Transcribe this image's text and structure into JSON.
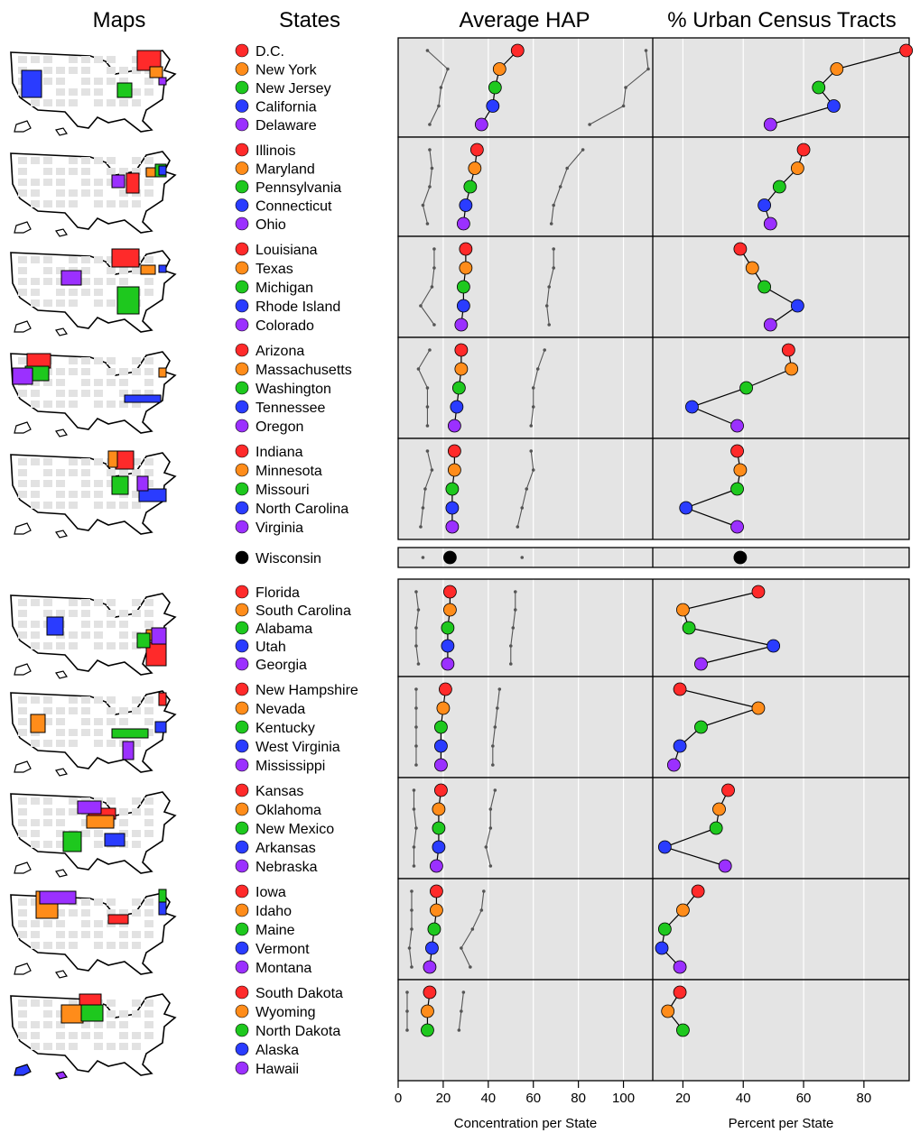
{
  "headers": {
    "maps": "Maps",
    "states": "States",
    "hap": "Average HAP",
    "urban": "% Urban Census Tracts"
  },
  "axis": {
    "hap_label": "Concentration per State",
    "urban_label": "Percent per State",
    "hap_ticks": [
      "0",
      "20",
      "40",
      "60",
      "80",
      "100"
    ],
    "urban_ticks": [
      "20",
      "40",
      "60",
      "80"
    ]
  },
  "colors": {
    "red": "#ff2a2a",
    "orange": "#ff8c1a",
    "green": "#1ec81e",
    "blue": "#2a3cff",
    "purple": "#9b30ff",
    "black": "#000000",
    "panel": "#e4e4e4",
    "grid": "#ffffff"
  },
  "chart_data": [
    {
      "type": "scatter",
      "title": "Average HAP",
      "xlabel": "Concentration per State",
      "xlim": [
        0,
        113
      ],
      "groups": [
        {
          "states": [
            "D.C.",
            "New York",
            "New Jersey",
            "California",
            "Delaware"
          ],
          "median": [
            53,
            45,
            43,
            42,
            37
          ],
          "lower": [
            13,
            22,
            19,
            18,
            14
          ],
          "upper": [
            110,
            111,
            101,
            100,
            85
          ]
        },
        {
          "states": [
            "Illinois",
            "Maryland",
            "Pennsylvania",
            "Connecticut",
            "Ohio"
          ],
          "median": [
            35,
            34,
            32,
            30,
            29
          ],
          "lower": [
            14,
            15,
            14,
            11,
            13
          ],
          "upper": [
            82,
            75,
            72,
            69,
            68
          ]
        },
        {
          "states": [
            "Louisiana",
            "Texas",
            "Michigan",
            "Rhode Island",
            "Colorado"
          ],
          "median": [
            30,
            30,
            29,
            29,
            28
          ],
          "lower": [
            16,
            16,
            15,
            10,
            16
          ],
          "upper": [
            69,
            69,
            67,
            66,
            67
          ]
        },
        {
          "states": [
            "Arizona",
            "Massachusetts",
            "Washington",
            "Tennessee",
            "Oregon"
          ],
          "median": [
            28,
            28,
            27,
            26,
            25
          ],
          "lower": [
            14,
            9,
            13,
            13,
            13
          ],
          "upper": [
            65,
            62,
            60,
            60,
            59
          ]
        },
        {
          "states": [
            "Indiana",
            "Minnesota",
            "Missouri",
            "North Carolina",
            "Virginia"
          ],
          "median": [
            25,
            25,
            24,
            24,
            24
          ],
          "lower": [
            13,
            15,
            12,
            11,
            10
          ],
          "upper": [
            59,
            60,
            57,
            55,
            53
          ]
        },
        {
          "states": [
            "Wisconsin"
          ],
          "median": [
            23
          ],
          "lower": [
            11
          ],
          "upper": [
            55
          ]
        },
        {
          "states": [
            "Florida",
            "South Carolina",
            "Alabama",
            "Utah",
            "Georgia"
          ],
          "median": [
            23,
            23,
            22,
            22,
            22
          ],
          "lower": [
            8,
            9,
            8,
            8,
            9
          ],
          "upper": [
            52,
            52,
            51,
            50,
            50
          ]
        },
        {
          "states": [
            "New Hampshire",
            "Nevada",
            "Kentucky",
            "West Virginia",
            "Mississippi"
          ],
          "median": [
            21,
            20,
            19,
            19,
            19
          ],
          "lower": [
            8,
            8,
            8,
            8,
            8
          ],
          "upper": [
            45,
            44,
            43,
            42,
            42
          ]
        },
        {
          "states": [
            "Kansas",
            "Oklahoma",
            "New Mexico",
            "Arkansas",
            "Nebraska"
          ],
          "median": [
            19,
            18,
            18,
            18,
            17
          ],
          "lower": [
            7,
            7,
            8,
            7,
            7
          ],
          "upper": [
            43,
            41,
            41,
            39,
            41
          ]
        },
        {
          "states": [
            "Iowa",
            "Idaho",
            "Maine",
            "Vermont",
            "Montana"
          ],
          "median": [
            17,
            17,
            16,
            15,
            14
          ],
          "lower": [
            6,
            6,
            6,
            5,
            6
          ],
          "upper": [
            38,
            37,
            33,
            28,
            32
          ]
        },
        {
          "states": [
            "South Dakota",
            "Wyoming",
            "North Dakota",
            "Alaska",
            "Hawaii"
          ],
          "median": [
            14,
            13,
            13,
            null,
            null
          ],
          "lower": [
            4,
            4,
            4,
            null,
            null
          ],
          "upper": [
            29,
            28,
            27,
            null,
            null
          ]
        }
      ]
    },
    {
      "type": "scatter",
      "title": "% Urban Census Tracts",
      "xlabel": "Percent per State",
      "xlim": [
        10,
        95
      ],
      "groups": [
        {
          "states": [
            "D.C.",
            "New York",
            "New Jersey",
            "California",
            "Delaware"
          ],
          "values": [
            94,
            71,
            65,
            70,
            49
          ]
        },
        {
          "states": [
            "Illinois",
            "Maryland",
            "Pennsylvania",
            "Connecticut",
            "Ohio"
          ],
          "values": [
            60,
            58,
            52,
            47,
            49
          ]
        },
        {
          "states": [
            "Louisiana",
            "Texas",
            "Michigan",
            "Rhode Island",
            "Colorado"
          ],
          "values": [
            39,
            43,
            47,
            58,
            49
          ]
        },
        {
          "states": [
            "Arizona",
            "Massachusetts",
            "Washington",
            "Tennessee",
            "Oregon"
          ],
          "values": [
            55,
            56,
            41,
            23,
            38
          ]
        },
        {
          "states": [
            "Indiana",
            "Minnesota",
            "Missouri",
            "North Carolina",
            "Virginia"
          ],
          "values": [
            38,
            39,
            38,
            21,
            38
          ]
        },
        {
          "states": [
            "Wisconsin"
          ],
          "values": [
            39
          ]
        },
        {
          "states": [
            "Florida",
            "South Carolina",
            "Alabama",
            "Utah",
            "Georgia"
          ],
          "values": [
            45,
            20,
            22,
            50,
            26
          ]
        },
        {
          "states": [
            "New Hampshire",
            "Nevada",
            "Kentucky",
            "West Virginia",
            "Mississippi"
          ],
          "values": [
            19,
            45,
            26,
            19,
            17
          ]
        },
        {
          "states": [
            "Kansas",
            "Oklahoma",
            "New Mexico",
            "Arkansas",
            "Nebraska"
          ],
          "values": [
            35,
            32,
            31,
            14,
            34
          ]
        },
        {
          "states": [
            "Iowa",
            "Idaho",
            "Maine",
            "Vermont",
            "Montana"
          ],
          "values": [
            25,
            20,
            14,
            13,
            19
          ]
        },
        {
          "states": [
            "South Dakota",
            "Wyoming",
            "North Dakota",
            "Alaska",
            "Hawaii"
          ],
          "values": [
            19,
            15,
            20,
            null,
            null
          ]
        }
      ]
    }
  ]
}
